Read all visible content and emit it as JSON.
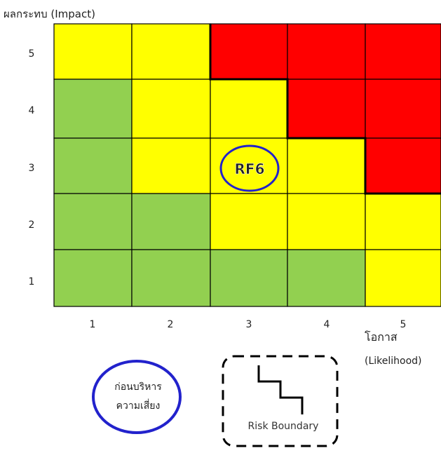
{
  "y_axis_title": "ผลกระทบ (Impact)",
  "x_axis_title": "โอกาส",
  "x_axis_subtitle": "(Likelihood)",
  "y_ticks": [
    "5",
    "4",
    "3",
    "2",
    "1"
  ],
  "x_ticks": [
    "1",
    "2",
    "3",
    "4",
    "5"
  ],
  "marker_label": "RF6",
  "legend": {
    "before_label_line1": "ก่อนบริหาร",
    "before_label_line2": "ความเสี่ยง",
    "boundary_label": "Risk Boundary"
  },
  "colors": {
    "red": "#ff0000",
    "yellow": "#ffff00",
    "green": "#92d050",
    "blue": "#2222cc"
  },
  "matrix": [
    [
      "yellow",
      "yellow",
      "red",
      "red",
      "red"
    ],
    [
      "green",
      "yellow",
      "yellow",
      "red",
      "red"
    ],
    [
      "green",
      "yellow",
      "yellow",
      "yellow",
      "red"
    ],
    [
      "green",
      "green",
      "yellow",
      "yellow",
      "yellow"
    ],
    [
      "green",
      "green",
      "green",
      "green",
      "yellow"
    ]
  ],
  "marker_cell": {
    "likelihood": 3,
    "impact": 3
  }
}
